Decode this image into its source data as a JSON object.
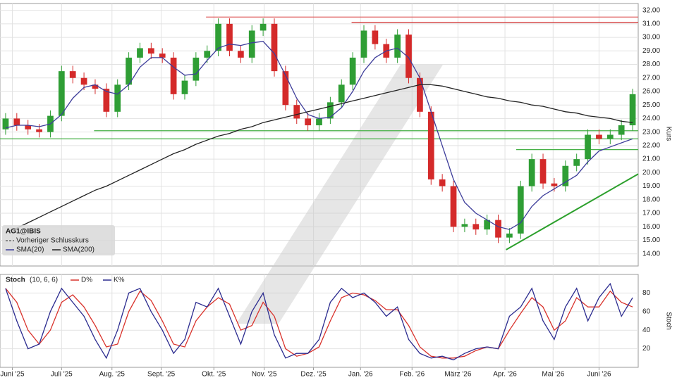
{
  "chart_data": [
    {
      "type": "candlestick",
      "title": "AG1@IBIS",
      "y_label": "Kurs",
      "reference_line_name": "Vorheriger Schlusskurs",
      "x": [
        0.5,
        1.5,
        2.5,
        3.5,
        4.5,
        5.5,
        6.5,
        7.5,
        8.5,
        9.5,
        10.5,
        11.5,
        12.5,
        13.5,
        14.5,
        15.5,
        16.5,
        17.5,
        18.5,
        19.5,
        20.5,
        21.5,
        22.5,
        23.5,
        24.5,
        25.5,
        26.5,
        27.5,
        28.5,
        29.5,
        30.5,
        31.5,
        32.5,
        33.5,
        34.5,
        35.5,
        36.5,
        37.5,
        38.5,
        39.5,
        40.5,
        41.5,
        42.5,
        43.5,
        44.5,
        45.5,
        46.5,
        47.5,
        48.5,
        49.5,
        50.5,
        51.5,
        52.5,
        53.5,
        54.5,
        55.5,
        56.5
      ],
      "open": [
        23.2,
        24.0,
        23.5,
        23.2,
        23.0,
        24.2,
        27.5,
        27.0,
        26.5,
        26.2,
        24.5,
        26.5,
        28.5,
        29.2,
        28.8,
        28.5,
        25.8,
        26.8,
        28.5,
        29.0,
        31.0,
        29.0,
        28.5,
        30.5,
        31.0,
        27.5,
        25.0,
        24.0,
        23.5,
        24.0,
        25.2,
        26.5,
        28.5,
        30.5,
        29.5,
        28.5,
        30.2,
        27.0,
        24.5,
        19.5,
        19.0,
        16.0,
        16.2,
        15.8,
        16.5,
        15.2,
        15.5,
        19.0,
        21.0,
        19.2,
        19.0,
        20.5,
        21.0,
        22.8,
        22.5,
        22.8,
        23.5
      ],
      "high": [
        24.4,
        24.4,
        23.9,
        23.6,
        24.6,
        27.9,
        27.9,
        27.4,
        26.9,
        26.6,
        26.9,
        28.9,
        29.6,
        29.6,
        29.2,
        28.9,
        27.2,
        28.9,
        29.4,
        31.4,
        31.4,
        29.4,
        30.9,
        31.4,
        31.4,
        27.9,
        25.4,
        24.4,
        24.4,
        25.6,
        26.9,
        28.9,
        30.9,
        30.9,
        29.9,
        30.6,
        30.6,
        27.4,
        24.9,
        19.9,
        19.4,
        16.6,
        16.6,
        16.9,
        16.9,
        15.9,
        19.4,
        21.4,
        21.4,
        19.6,
        20.9,
        21.4,
        23.2,
        23.2,
        23.2,
        23.9,
        26.2
      ],
      "low": [
        22.8,
        23.1,
        22.8,
        22.6,
        22.6,
        23.8,
        26.6,
        26.1,
        25.8,
        24.1,
        24.1,
        26.1,
        28.1,
        28.4,
        28.1,
        25.4,
        25.4,
        26.4,
        28.1,
        28.6,
        28.6,
        28.1,
        28.1,
        30.1,
        27.1,
        24.6,
        23.6,
        23.1,
        23.1,
        23.6,
        24.8,
        26.1,
        28.1,
        29.1,
        28.1,
        28.1,
        26.6,
        24.1,
        19.1,
        18.6,
        15.6,
        15.6,
        15.4,
        15.4,
        14.8,
        14.8,
        15.1,
        18.6,
        18.8,
        18.6,
        18.6,
        20.1,
        20.6,
        22.1,
        22.1,
        22.4,
        23.1
      ],
      "close": [
        24.0,
        23.5,
        23.2,
        23.0,
        24.2,
        27.5,
        27.0,
        26.5,
        26.2,
        24.5,
        26.5,
        28.5,
        29.2,
        28.8,
        28.5,
        25.8,
        26.8,
        28.5,
        29.0,
        31.0,
        29.0,
        28.5,
        30.5,
        31.0,
        27.5,
        25.0,
        24.0,
        23.5,
        24.0,
        25.2,
        26.5,
        28.5,
        30.5,
        29.5,
        28.5,
        30.2,
        27.0,
        24.5,
        19.5,
        19.0,
        16.0,
        16.2,
        15.8,
        16.5,
        15.2,
        15.5,
        19.0,
        21.0,
        19.2,
        19.0,
        20.5,
        21.0,
        22.8,
        22.5,
        22.8,
        23.5,
        25.8
      ],
      "up_color": "#2f9e35",
      "down_color": "#d42a2a",
      "series": [
        {
          "name": "SMA(20)",
          "color": "#3d3d9a",
          "values": [
            23.3,
            23.5,
            23.5,
            23.4,
            23.6,
            24.3,
            25.5,
            26.3,
            26.5,
            26.0,
            25.8,
            26.5,
            27.8,
            28.5,
            28.5,
            27.8,
            27.2,
            27.3,
            28.3,
            29.2,
            29.5,
            29.4,
            29.6,
            29.7,
            28.8,
            27.2,
            25.5,
            24.3,
            24.0,
            24.1,
            24.8,
            26.0,
            27.5,
            28.5,
            29.0,
            29.2,
            28.5,
            27.0,
            24.5,
            22.0,
            19.5,
            17.8,
            17.0,
            16.5,
            16.0,
            15.8,
            16.3,
            17.5,
            18.3,
            18.8,
            19.3,
            19.8,
            20.8,
            21.6,
            21.9,
            22.2,
            22.5
          ]
        },
        {
          "name": "SMA(200)",
          "color": "#222222",
          "values": [
            15.6,
            15.9,
            16.3,
            16.7,
            17.1,
            17.5,
            17.9,
            18.3,
            18.7,
            19.0,
            19.4,
            19.8,
            20.2,
            20.6,
            21.0,
            21.4,
            21.7,
            22.1,
            22.4,
            22.7,
            22.9,
            23.2,
            23.4,
            23.7,
            23.9,
            24.1,
            24.3,
            24.5,
            24.7,
            24.9,
            25.1,
            25.3,
            25.5,
            25.7,
            25.9,
            26.1,
            26.3,
            26.5,
            26.5,
            26.4,
            26.2,
            26.0,
            25.8,
            25.6,
            25.5,
            25.3,
            25.2,
            25.0,
            24.9,
            24.7,
            24.5,
            24.4,
            24.2,
            24.1,
            24.0,
            23.8,
            23.7
          ]
        }
      ],
      "hlines": [
        {
          "value": 31.5,
          "from": 18.4,
          "color": "#e06464"
        },
        {
          "value": 31.1,
          "from": 31.4,
          "color": "#d43c3c"
        },
        {
          "value": 23.1,
          "from": 8.4,
          "color": "#46b046"
        },
        {
          "value": 22.5,
          "from": 0,
          "color": "#46b046"
        },
        {
          "value": 21.7,
          "from": 46.1,
          "color": "#46b046"
        }
      ],
      "trendline": {
        "x": [
          45.2,
          57
        ],
        "y": [
          14.3,
          19.9
        ],
        "color": "#2ca02c"
      },
      "xlim": [
        0,
        57
      ],
      "ylim": [
        13.1,
        32.5
      ],
      "yticks": [
        {
          "value": 14,
          "label": "14.00"
        },
        {
          "value": 15,
          "label": "15.00"
        },
        {
          "value": 16,
          "label": "16.00"
        },
        {
          "value": 17,
          "label": "17.00"
        },
        {
          "value": 18,
          "label": "18.00"
        },
        {
          "value": 19,
          "label": "19.00"
        },
        {
          "value": 20,
          "label": "20.00"
        },
        {
          "value": 21,
          "label": "21.00"
        },
        {
          "value": 22,
          "label": "22.00"
        },
        {
          "value": 23,
          "label": "23.00"
        },
        {
          "value": 24,
          "label": "24.00"
        },
        {
          "value": 25,
          "label": "25.00"
        },
        {
          "value": 26,
          "label": "26.00"
        },
        {
          "value": 27,
          "label": "27.00"
        },
        {
          "value": 28,
          "label": "28.00"
        },
        {
          "value": 29,
          "label": "29.00"
        },
        {
          "value": 30,
          "label": "30.00"
        },
        {
          "value": 31,
          "label": "31.00"
        },
        {
          "value": 32,
          "label": "32.00"
        }
      ],
      "grid": true
    },
    {
      "type": "line",
      "title": "Stoch",
      "subtitle": "(10, 6, 6)",
      "y_label": "Stoch",
      "x": [
        0.5,
        1.5,
        2.5,
        3.5,
        4.5,
        5.5,
        6.5,
        7.5,
        8.5,
        9.5,
        10.5,
        11.5,
        12.5,
        13.5,
        14.5,
        15.5,
        16.5,
        17.5,
        18.5,
        19.5,
        20.5,
        21.5,
        22.5,
        23.5,
        24.5,
        25.5,
        26.5,
        27.5,
        28.5,
        29.5,
        30.5,
        31.5,
        32.5,
        33.5,
        34.5,
        35.5,
        36.5,
        37.5,
        38.5,
        39.5,
        40.5,
        41.5,
        42.5,
        43.5,
        44.5,
        45.5,
        46.5,
        47.5,
        48.5,
        49.5,
        50.5,
        51.5,
        52.5,
        53.5,
        54.5,
        55.5,
        56.5
      ],
      "series": [
        {
          "name": "D%",
          "color": "#d9322b",
          "values": [
            85,
            70,
            40,
            25,
            40,
            70,
            78,
            65,
            45,
            22,
            25,
            60,
            82,
            72,
            50,
            25,
            22,
            50,
            65,
            75,
            68,
            40,
            45,
            70,
            55,
            20,
            12,
            15,
            22,
            50,
            75,
            80,
            78,
            72,
            62,
            62,
            45,
            22,
            12,
            10,
            10,
            12,
            18,
            22,
            20,
            40,
            58,
            75,
            65,
            40,
            50,
            75,
            65,
            65,
            82,
            70,
            65
          ]
        },
        {
          "name": "K%",
          "color": "#2b2b8f",
          "values": [
            85,
            50,
            20,
            25,
            60,
            85,
            70,
            55,
            30,
            10,
            40,
            80,
            85,
            60,
            40,
            15,
            30,
            70,
            65,
            85,
            55,
            25,
            60,
            80,
            35,
            10,
            15,
            15,
            30,
            70,
            85,
            75,
            80,
            70,
            55,
            65,
            30,
            15,
            10,
            12,
            8,
            15,
            20,
            22,
            20,
            55,
            65,
            85,
            50,
            30,
            65,
            85,
            50,
            75,
            90,
            55,
            75
          ]
        }
      ],
      "xlim": [
        0,
        57
      ],
      "ylim": [
        0,
        100
      ],
      "yticks": [
        20,
        40,
        60,
        80
      ],
      "xticks": [
        {
          "value": 1.1,
          "label": "Juni '25"
        },
        {
          "value": 5.5,
          "label": "Juli '25"
        },
        {
          "value": 10,
          "label": "Aug. '25"
        },
        {
          "value": 14.4,
          "label": "Sept. '25"
        },
        {
          "value": 19.1,
          "label": "Okt. '25"
        },
        {
          "value": 23.6,
          "label": "Nov. '25"
        },
        {
          "value": 28,
          "label": "Dez. '25"
        },
        {
          "value": 32.2,
          "label": "Jan. '26"
        },
        {
          "value": 36.8,
          "label": "Feb. '26"
        },
        {
          "value": 40.9,
          "label": "März '26"
        },
        {
          "value": 45.1,
          "label": "Apr. '26"
        },
        {
          "value": 49.4,
          "label": "Mai '26"
        },
        {
          "value": 53.5,
          "label": "Juni '26"
        }
      ],
      "grid": true
    }
  ]
}
